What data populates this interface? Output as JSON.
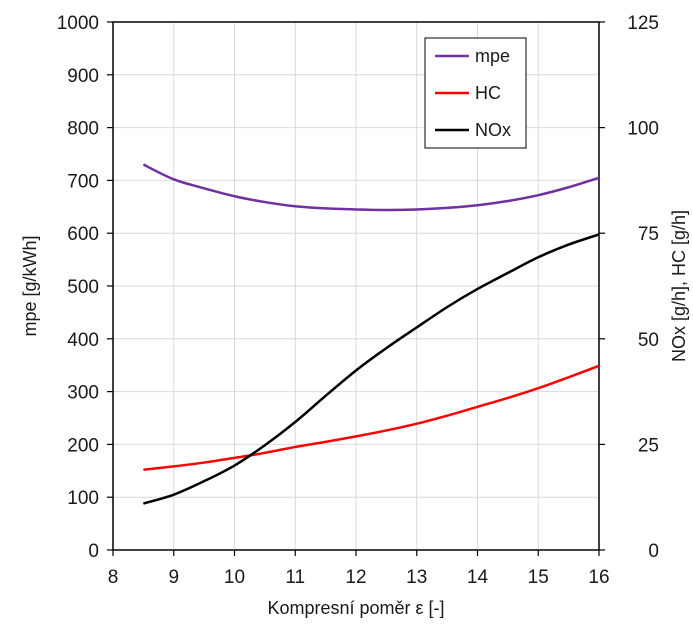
{
  "chart_data": {
    "type": "line",
    "title": "",
    "xlabel": "Kompresní poměr ε [-]",
    "ylabel": "mpe [g/kWh]",
    "y2label": "NOx [g/h], HC [g/h]",
    "xlim": [
      8,
      16
    ],
    "ylim": [
      0,
      1000
    ],
    "y2lim": [
      0,
      125
    ],
    "xticks": [
      8,
      9,
      10,
      11,
      12,
      13,
      14,
      15,
      16
    ],
    "yticks": [
      0,
      100,
      200,
      300,
      400,
      500,
      600,
      700,
      800,
      900,
      1000
    ],
    "y2ticks": [
      0,
      25,
      50,
      75,
      100,
      125
    ],
    "grid": true,
    "legend_position": "top-right",
    "series": [
      {
        "name": "mpe",
        "axis": "left",
        "color": "#7030a0",
        "x": [
          8.5,
          9,
          9.5,
          10,
          10.5,
          11,
          11.5,
          12,
          12.5,
          13,
          13.5,
          14,
          14.5,
          15,
          15.5,
          16
        ],
        "y": [
          730,
          702,
          685,
          670,
          659,
          651,
          647,
          645,
          644,
          645,
          648,
          653,
          661,
          672,
          687,
          705
        ]
      },
      {
        "name": "HC",
        "axis": "right",
        "color": "#ff0000",
        "x": [
          8.5,
          9,
          9.5,
          10,
          10.5,
          11,
          11.5,
          12,
          12.5,
          13,
          13.5,
          14,
          14.5,
          15,
          15.5,
          16
        ],
        "y": [
          19,
          19.8,
          20.7,
          21.8,
          23,
          24.4,
          25.6,
          26.9,
          28.3,
          29.9,
          31.8,
          33.9,
          36,
          38.3,
          40.9,
          43.6
        ]
      },
      {
        "name": "NOx",
        "axis": "right",
        "color": "#000000",
        "x": [
          8.5,
          9,
          9.5,
          10,
          10.5,
          11,
          11.5,
          12,
          12.5,
          13,
          13.5,
          14,
          14.5,
          15,
          15.5,
          16
        ],
        "y": [
          11,
          13.1,
          16.3,
          20,
          24.8,
          30.3,
          36.5,
          42.5,
          47.8,
          52.7,
          57.5,
          61.8,
          65.6,
          69.3,
          72.3,
          74.7
        ]
      }
    ]
  }
}
